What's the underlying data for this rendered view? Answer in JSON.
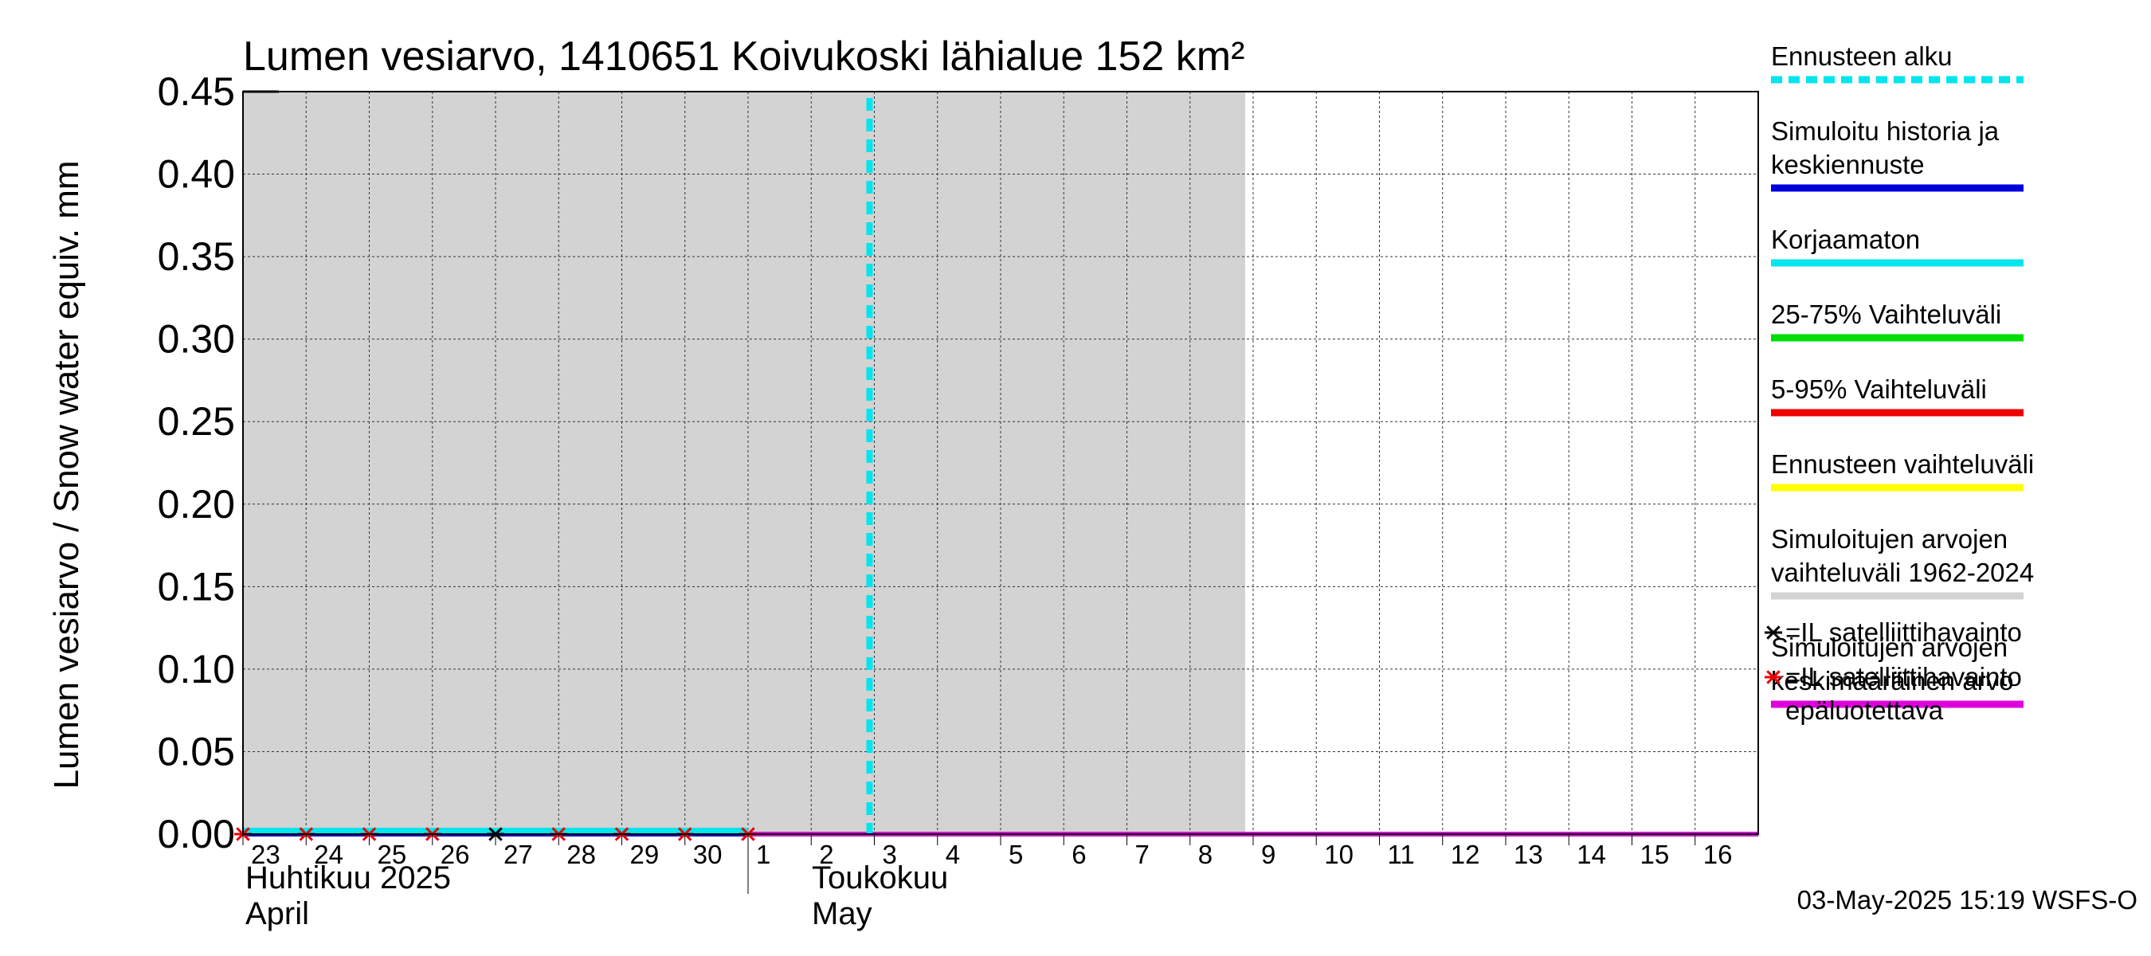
{
  "chart_data": {
    "type": "line",
    "title": "Lumen vesiarvo, 1410651 Koivukoski lähialue 152 km²",
    "ylabel": "Lumen vesiarvo / Snow water equiv.    mm",
    "ylim": [
      0.0,
      0.45
    ],
    "yticks": [
      "0.00",
      "0.05",
      "0.10",
      "0.15",
      "0.20",
      "0.25",
      "0.30",
      "0.35",
      "0.40",
      "0.45"
    ],
    "x_days": [
      "23",
      "24",
      "25",
      "26",
      "27",
      "28",
      "29",
      "30",
      "1",
      "2",
      "3",
      "4",
      "5",
      "6",
      "7",
      "8",
      "9",
      "10",
      "11",
      "12",
      "13",
      "14",
      "15",
      "16"
    ],
    "month_labels": [
      {
        "line1": "Huhtikuu  2025",
        "line2": "April",
        "start_day_index": 0
      },
      {
        "line1": "Toukokuu",
        "line2": "May",
        "start_day_index": 8
      }
    ],
    "forecast_start_day_index": 10,
    "historical_range_end_day_index": 16,
    "series": [
      {
        "name": "Simuloitu historia ja keskiennuste",
        "color": "#0000dd",
        "from_index": 0,
        "to_index": 24,
        "values": "all 0.00"
      },
      {
        "name": "Korjaamaton",
        "color": "#00e5ee",
        "from_index": 0,
        "to_index": 8,
        "values": "all 0.00"
      },
      {
        "name": "Simuloitujen arvojen keskimääräinen arvo",
        "color": "#dd00dd",
        "from_index": 8,
        "to_index": 24,
        "values": "all 0.00"
      }
    ],
    "satellite_obs": [
      {
        "day_index": 0,
        "value": 0.0,
        "reliable": false
      },
      {
        "day_index": 1,
        "value": 0.0,
        "reliable": false
      },
      {
        "day_index": 2,
        "value": 0.0,
        "reliable": false
      },
      {
        "day_index": 3,
        "value": 0.0,
        "reliable": false
      },
      {
        "day_index": 4,
        "value": 0.0,
        "reliable": true
      },
      {
        "day_index": 5,
        "value": 0.0,
        "reliable": false
      },
      {
        "day_index": 6,
        "value": 0.0,
        "reliable": false
      },
      {
        "day_index": 7,
        "value": 0.0,
        "reliable": false
      },
      {
        "day_index": 8,
        "value": 0.0,
        "reliable": false
      }
    ],
    "legend": [
      {
        "label_lines": [
          "Ennusteen alku"
        ],
        "color": "#00e5ee",
        "style": "dashed"
      },
      {
        "label_lines": [
          "Simuloitu historia ja",
          "keskiennuste"
        ],
        "color": "#0000dd",
        "style": "solid"
      },
      {
        "label_lines": [
          "Korjaamaton"
        ],
        "color": "#00e5ee",
        "style": "solid"
      },
      {
        "label_lines": [
          "25-75% Vaihteluväli"
        ],
        "color": "#00dd00",
        "style": "solid"
      },
      {
        "label_lines": [
          "5-95% Vaihteluväli"
        ],
        "color": "#ee0000",
        "style": "solid"
      },
      {
        "label_lines": [
          "Ennusteen vaihteluväli"
        ],
        "color": "#ffff00",
        "style": "solid"
      },
      {
        "label_lines": [
          "Simuloitujen arvojen",
          "vaihteluväli 1962-2024"
        ],
        "color": "#d3d3d3",
        "style": "solid"
      },
      {
        "label_lines": [
          "Simuloitujen arvojen",
          "keskimääräinen arvo"
        ],
        "color": "#dd00dd",
        "style": "solid"
      }
    ],
    "marker_legend": [
      {
        "symbol": "✳",
        "color": "#000000",
        "label_lines": [
          "=IL satelliittihavainto"
        ]
      },
      {
        "symbol": "✳",
        "color": "#ee0000",
        "label_lines": [
          "=IL satelliittihavainto",
          "epäluotettava"
        ]
      }
    ],
    "timestamp": "03-May-2025 15:19 WSFS-O"
  }
}
